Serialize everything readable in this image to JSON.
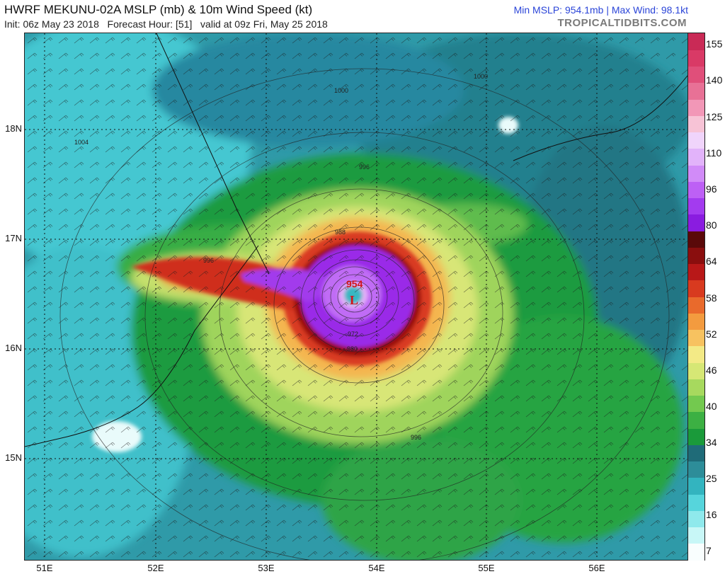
{
  "header": {
    "title": "HWRF MEKUNU-02A MSLP (mb) & 10m Wind Speed (kt)",
    "init": "Init: 06z May 23 2018",
    "forecast_hour": "Forecast Hour: [51]",
    "valid": "valid at 09z Fri, May 25 2018",
    "stats": "Min MSLP: 954.1mb | Max Wind: 98.1kt",
    "brand": "TROPICALTIDBITS.COM"
  },
  "map": {
    "lat_labels": [
      "18N",
      "17N",
      "16N",
      "15N"
    ],
    "lon_labels": [
      "51E",
      "52E",
      "53E",
      "54E",
      "55E",
      "56E"
    ],
    "low_marker": "L",
    "min_pressure_label": "954",
    "isobar_labels": [
      "1004",
      "1000",
      "1000",
      "996",
      "996",
      "996",
      "988",
      "972",
      "980"
    ]
  },
  "colorbar": {
    "labels": [
      "155",
      "140",
      "125",
      "110",
      "96",
      "80",
      "64",
      "58",
      "52",
      "46",
      "40",
      "34",
      "25",
      "16",
      "7"
    ],
    "colors": [
      "#f9fefe",
      "#c8f7f7",
      "#8fe9ec",
      "#56d5dc",
      "#33b4bf",
      "#2d8d99",
      "#1f6b78",
      "#1a9a3a",
      "#3cb043",
      "#73c94f",
      "#a7d95e",
      "#d6e775",
      "#f3ea86",
      "#f7c260",
      "#f39b3f",
      "#e96a2c",
      "#d83a1f",
      "#b81818",
      "#8a0e0e",
      "#5a0909",
      "#8a1ce0",
      "#a33bef",
      "#bd60f5",
      "#d18bf8",
      "#e2b3fa",
      "#f0d4fb",
      "#f7c3d6",
      "#f297b7",
      "#e87196",
      "#e04f7a",
      "#d93a66",
      "#c92a56"
    ]
  }
}
